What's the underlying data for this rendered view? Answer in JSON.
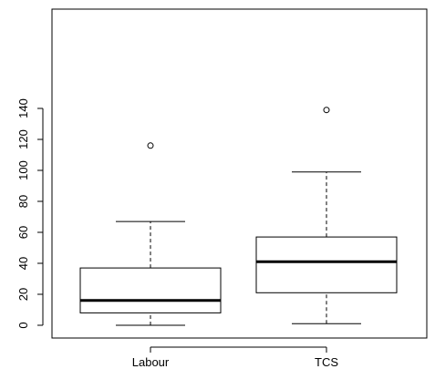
{
  "chart_data": {
    "type": "boxplot",
    "title": "",
    "xlabel": "",
    "ylabel": "",
    "categories": [
      "Labour",
      "TCS"
    ],
    "series": [
      {
        "name": "Labour",
        "whisker_low": 0,
        "q1": 8,
        "median": 16,
        "q3": 37,
        "whisker_high": 67,
        "outliers": [
          116
        ]
      },
      {
        "name": "TCS",
        "whisker_low": 1,
        "q1": 21,
        "median": 41,
        "q3": 57,
        "whisker_high": 99,
        "outliers": [
          139
        ]
      }
    ],
    "yticks": [
      0,
      20,
      40,
      60,
      80,
      100,
      120,
      140
    ],
    "ylim": [
      -5,
      146
    ],
    "grid": false,
    "legend": "none",
    "colors": {
      "stroke": "#000000",
      "background": "#ffffff"
    }
  }
}
